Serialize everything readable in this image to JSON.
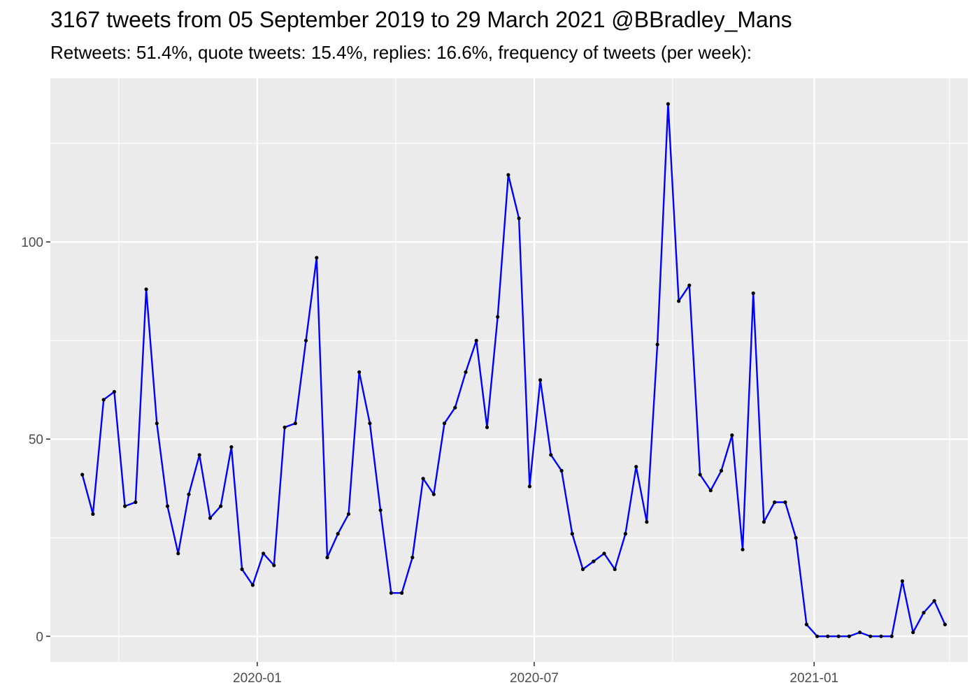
{
  "chart_data": {
    "type": "line",
    "title": "3167 tweets from 05 September 2019 to 29 March 2021 @BBradley_Mans",
    "subtitle": "Retweets: 51.4%, quote tweets: 15.4%, replies: 16.6%, frequency of tweets (per week):",
    "xlabel": "",
    "ylabel": "",
    "x_ticks": [
      "2020-01-01",
      "2020-07-01",
      "2021-01-01"
    ],
    "x_tick_labels": [
      "2020-01",
      "2020-07",
      "2021-01"
    ],
    "y_ticks": [
      0,
      50,
      100
    ],
    "y_tick_labels": [
      "0",
      "50",
      "100"
    ],
    "xlim": [
      "2019-08-18",
      "2021-04-12"
    ],
    "ylim": [
      -6.5,
      141.5
    ],
    "grid": true,
    "legend": "none",
    "colors": {
      "line": "#0000ff",
      "point": "#000000",
      "panel": "#ebebeb",
      "grid": "#ffffff"
    },
    "series": [
      {
        "x": [
          "2019-09-08",
          "2019-09-15",
          "2019-09-22",
          "2019-09-29",
          "2019-10-06",
          "2019-10-13",
          "2019-10-20",
          "2019-10-27",
          "2019-11-03",
          "2019-11-10",
          "2019-11-17",
          "2019-11-24",
          "2019-12-01",
          "2019-12-08",
          "2019-12-15",
          "2019-12-22",
          "2019-12-29",
          "2020-01-05",
          "2020-01-12",
          "2020-01-19",
          "2020-01-26",
          "2020-02-02",
          "2020-02-09",
          "2020-02-16",
          "2020-02-23",
          "2020-03-01",
          "2020-03-08",
          "2020-03-15",
          "2020-03-22",
          "2020-03-29",
          "2020-04-05",
          "2020-04-12",
          "2020-04-19",
          "2020-04-26",
          "2020-05-03",
          "2020-05-10",
          "2020-05-17",
          "2020-05-24",
          "2020-05-31",
          "2020-06-07",
          "2020-06-14",
          "2020-06-21",
          "2020-06-28",
          "2020-07-05",
          "2020-07-12",
          "2020-07-19",
          "2020-07-26",
          "2020-08-02",
          "2020-08-09",
          "2020-08-16",
          "2020-08-23",
          "2020-08-30",
          "2020-09-06",
          "2020-09-13",
          "2020-09-20",
          "2020-09-27",
          "2020-10-04",
          "2020-10-11",
          "2020-10-18",
          "2020-10-25",
          "2020-11-01",
          "2020-11-08",
          "2020-11-15",
          "2020-11-22",
          "2020-11-29",
          "2020-12-06",
          "2020-12-13",
          "2020-12-20",
          "2020-12-27",
          "2021-01-03",
          "2021-01-10",
          "2021-01-17",
          "2021-01-24",
          "2021-01-31",
          "2021-02-07",
          "2021-02-14",
          "2021-02-21",
          "2021-02-28",
          "2021-03-07",
          "2021-03-14",
          "2021-03-21",
          "2021-03-28"
        ],
        "values": [
          41,
          31,
          60,
          62,
          33,
          34,
          88,
          54,
          33,
          21,
          36,
          46,
          30,
          33,
          48,
          17,
          13,
          21,
          18,
          53,
          54,
          75,
          96,
          20,
          26,
          31,
          67,
          54,
          32,
          11,
          11,
          20,
          40,
          36,
          54,
          58,
          67,
          75,
          53,
          81,
          117,
          106,
          38,
          65,
          46,
          42,
          26,
          17,
          19,
          21,
          17,
          26,
          43,
          29,
          74,
          135,
          85,
          89,
          41,
          37,
          42,
          51,
          22,
          87,
          29,
          34,
          34,
          25,
          3,
          0,
          0,
          0,
          0,
          1,
          0,
          0,
          0,
          14,
          1,
          6,
          9,
          3
        ]
      }
    ]
  }
}
